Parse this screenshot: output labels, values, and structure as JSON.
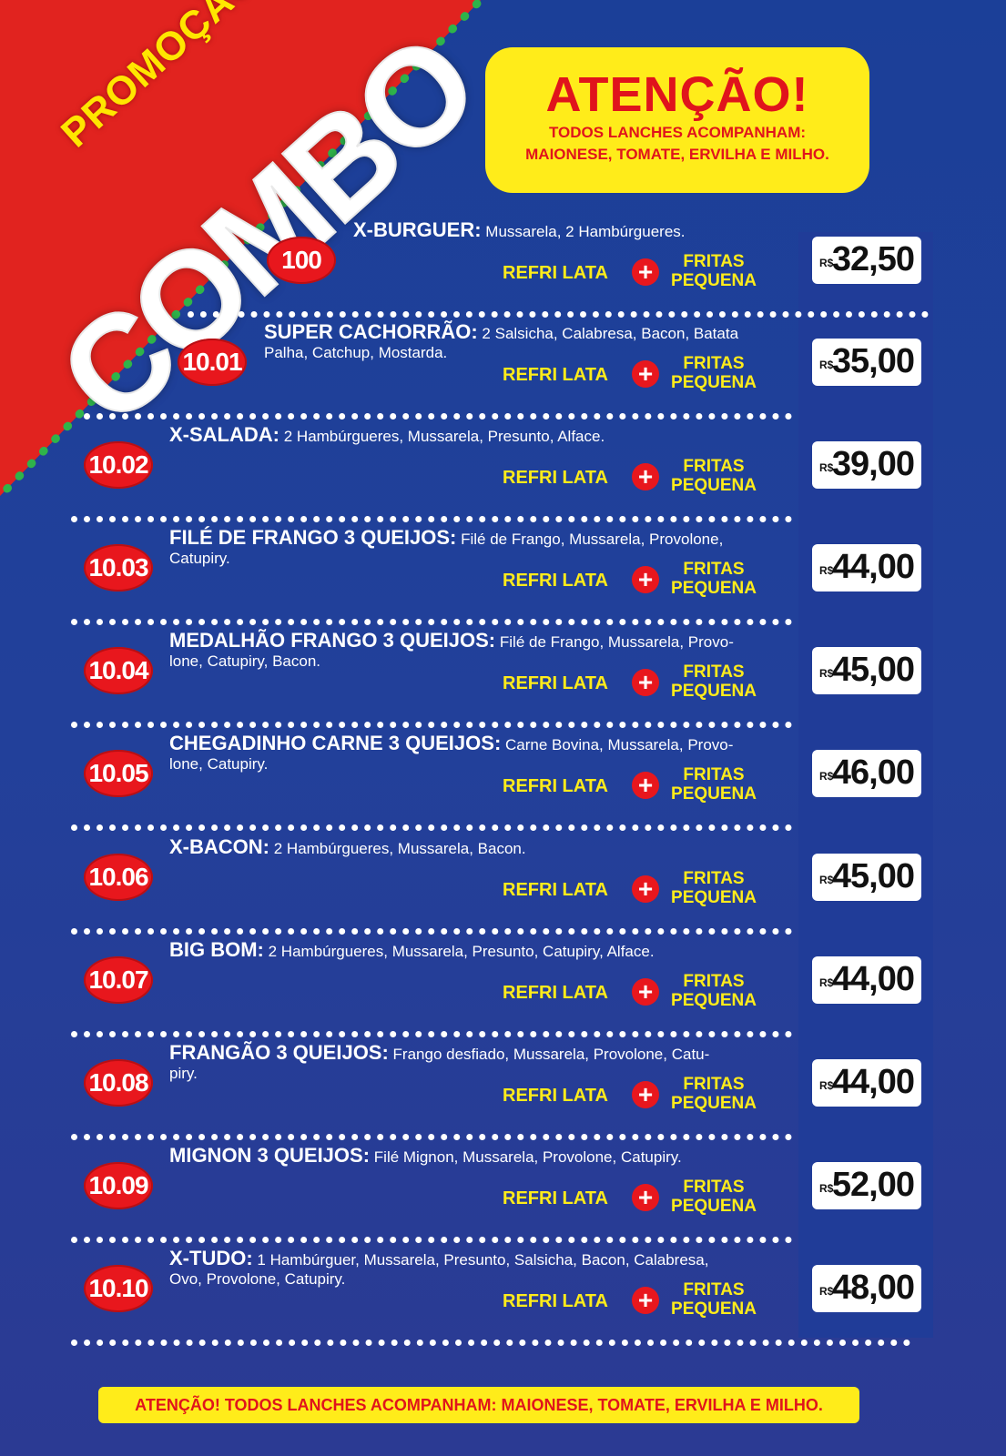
{
  "promo": {
    "small": "PROMOÇÃO",
    "big": "COMBO"
  },
  "attention": {
    "title": "ATENÇÃO!",
    "line1": "TODOS LANCHES ACOMPANHAM:",
    "line2": "MAIONESE, TOMATE, ERVILHA E MILHO."
  },
  "common": {
    "refri": "REFRI LATA",
    "plus": "+",
    "fritas1": "FRITAS",
    "fritas2": "PEQUENA",
    "currency": "R$"
  },
  "items": [
    {
      "code": "100",
      "name": "X-BURGUER:",
      "desc1": "Mussarela, 2 Hambúrgueres.",
      "desc2": "",
      "price": "32,50"
    },
    {
      "code": "10.01",
      "name": "SUPER CACHORRÃO:",
      "desc1": "2 Salsicha, Calabresa, Bacon, Batata",
      "desc2": "Palha, Catchup, Mostarda.",
      "price": "35,00"
    },
    {
      "code": "10.02",
      "name": "X-SALADA:",
      "desc1": "2 Hambúrgueres, Mussarela, Presunto, Alface.",
      "desc2": "",
      "price": "39,00"
    },
    {
      "code": "10.03",
      "name": "FILÉ DE FRANGO 3 QUEIJOS:",
      "desc1": "Filé de Frango, Mussarela, Provolone,",
      "desc2": "Catupiry.",
      "price": "44,00"
    },
    {
      "code": "10.04",
      "name": "MEDALHÃO FRANGO 3 QUEIJOS:",
      "desc1": "Filé de Frango, Mussarela, Provo-",
      "desc2": "lone, Catupiry, Bacon.",
      "price": "45,00"
    },
    {
      "code": "10.05",
      "name": "CHEGADINHO CARNE 3 QUEIJOS:",
      "desc1": "Carne Bovina, Mussarela, Provo-",
      "desc2": "lone, Catupiry.",
      "price": "46,00"
    },
    {
      "code": "10.06",
      "name": "X-BACON:",
      "desc1": "2 Hambúrgueres, Mussarela, Bacon.",
      "desc2": "",
      "price": "45,00"
    },
    {
      "code": "10.07",
      "name": "BIG BOM:",
      "desc1": "2 Hambúrgueres, Mussarela, Presunto, Catupiry, Alface.",
      "desc2": "",
      "price": "44,00"
    },
    {
      "code": "10.08",
      "name": "FRANGÃO 3 QUEIJOS:",
      "desc1": "Frango desfiado, Mussarela, Provolone, Catu-",
      "desc2": "piry.",
      "price": "44,00"
    },
    {
      "code": "10.09",
      "name": "MIGNON 3 QUEIJOS:",
      "desc1": "Filé Mignon, Mussarela, Provolone, Catupiry.",
      "desc2": "",
      "price": "52,00"
    },
    {
      "code": "10.10",
      "name": "X-TUDO:",
      "desc1": "1 Hambúrguer, Mussarela, Presunto, Salsicha, Bacon, Calabresa,",
      "desc2": "Ovo, Provolone, Catupiry.",
      "price": "48,00"
    }
  ],
  "footer": "ATENÇÃO! TODOS LANCHES ACOMPANHAM: MAIONESE, TOMATE, ERVILHA E MILHO."
}
